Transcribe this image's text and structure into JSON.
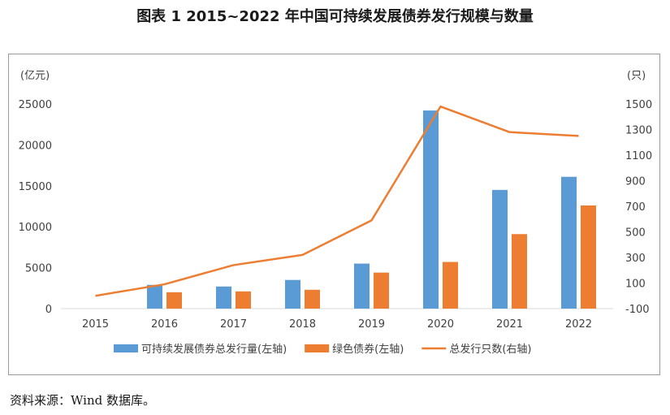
{
  "title": "图表 1  2015~2022 年中国可持续发展债券发行规模与数量",
  "source": "资料来源：Wind 数据库。",
  "colors": {
    "blue": "#5b9bd5",
    "orange": "#ed7d31",
    "line": "#ed7d31",
    "axis": "#d9d9d9",
    "text": "#404040"
  },
  "chart_data": {
    "type": "bar",
    "categories": [
      "2015",
      "2016",
      "2017",
      "2018",
      "2019",
      "2020",
      "2021",
      "2022"
    ],
    "y_left": {
      "unit": "(亿元)",
      "ticks": [
        0,
        5000,
        10000,
        15000,
        20000,
        25000
      ],
      "ylim": [
        0,
        25000
      ]
    },
    "y_right": {
      "unit": "(只)",
      "ticks": [
        -100,
        100,
        300,
        500,
        700,
        900,
        1100,
        1300,
        1500
      ],
      "ylim": [
        -100,
        1500
      ]
    },
    "series": [
      {
        "name": "可持续发展债券总发行量(左轴)",
        "type": "bar",
        "axis": "left",
        "color": "#5b9bd5",
        "values": [
          0,
          2900,
          2700,
          3500,
          5500,
          24200,
          14500,
          16100
        ]
      },
      {
        "name": "绿色债券(左轴)",
        "type": "bar",
        "axis": "left",
        "color": "#ed7d31",
        "values": [
          0,
          2000,
          2100,
          2300,
          4400,
          5700,
          9100,
          12600
        ]
      },
      {
        "name": "总发行只数(右轴)",
        "type": "line",
        "axis": "right",
        "color": "#ed7d31",
        "values": [
          0,
          90,
          240,
          320,
          590,
          1480,
          1280,
          1250
        ]
      }
    ],
    "grid": false,
    "legend": "bottom"
  }
}
